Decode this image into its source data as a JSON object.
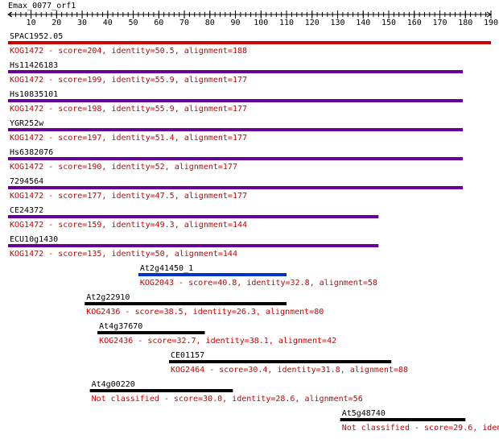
{
  "query": {
    "name": "Emax_0077_orf1",
    "axis": {
      "min": 1,
      "max": 190,
      "tick_labels": [
        10,
        20,
        30,
        40,
        50,
        60,
        70,
        80,
        90,
        100,
        110,
        120,
        130,
        140,
        150,
        160,
        170,
        180,
        190
      ]
    }
  },
  "colors": {
    "axis": "#000000",
    "hit_text": "#cc0000",
    "top_hit": "#cc0000",
    "kog1472_bar": "#660099",
    "blue_bar": "#0033cc",
    "other_bar": "#000000"
  },
  "hits": [
    {
      "name": "SPAC1952.05",
      "desc": "KOG1472 - score=204, identity=50.5, alignment=188",
      "start": 1,
      "end": 190,
      "color": "top_hit"
    },
    {
      "name": "Hs11426183",
      "desc": "KOG1472 - score=199, identity=55.9, alignment=177",
      "start": 1,
      "end": 179,
      "color": "kog1472_bar"
    },
    {
      "name": "Hs10835101",
      "desc": "KOG1472 - score=198, identity=55.9, alignment=177",
      "start": 1,
      "end": 179,
      "color": "kog1472_bar"
    },
    {
      "name": "YGR252w",
      "desc": "KOG1472 - score=197, identity=51.4, alignment=177",
      "start": 1,
      "end": 179,
      "color": "kog1472_bar"
    },
    {
      "name": "Hs6382076",
      "desc": "KOG1472 - score=190, identity=52, alignment=177",
      "start": 1,
      "end": 179,
      "color": "kog1472_bar"
    },
    {
      "name": "7294564",
      "desc": "KOG1472 - score=177, identity=47.5, alignment=177",
      "start": 1,
      "end": 179,
      "color": "kog1472_bar"
    },
    {
      "name": "CE24372",
      "desc": "KOG1472 - score=159, identity=49.3, alignment=144",
      "start": 1,
      "end": 146,
      "color": "kog1472_bar"
    },
    {
      "name": "ECU10g1430",
      "desc": "KOG1472 - score=135, identity=50, alignment=144",
      "start": 1,
      "end": 146,
      "color": "kog1472_bar"
    },
    {
      "name": "At2g41450_1",
      "desc": "KOG2043 - score=40.8, identity=32.8, alignment=58",
      "start": 52,
      "end": 110,
      "color": "blue_bar"
    },
    {
      "name": "At2g22910",
      "desc": "KOG2436 - score=38.5, identity=26.3, alignment=80",
      "start": 31,
      "end": 110,
      "color": "other_bar"
    },
    {
      "name": "At4g37670",
      "desc": "KOG2436 - score=32.7, identity=38.1, alignment=42",
      "start": 36,
      "end": 78,
      "color": "other_bar"
    },
    {
      "name": "CE01157",
      "desc": "KOG2464 - score=30.4, identity=31.8, alignment=88",
      "start": 64,
      "end": 151,
      "color": "other_bar"
    },
    {
      "name": "At4g00220",
      "desc": "Not classified - score=30.0, identity=28.6, alignment=56",
      "start": 33,
      "end": 89,
      "color": "other_bar"
    },
    {
      "name": "At5g48740",
      "desc": "Not classified - score=29.6, iden",
      "start": 131,
      "end": 180,
      "color": "other_bar"
    }
  ]
}
